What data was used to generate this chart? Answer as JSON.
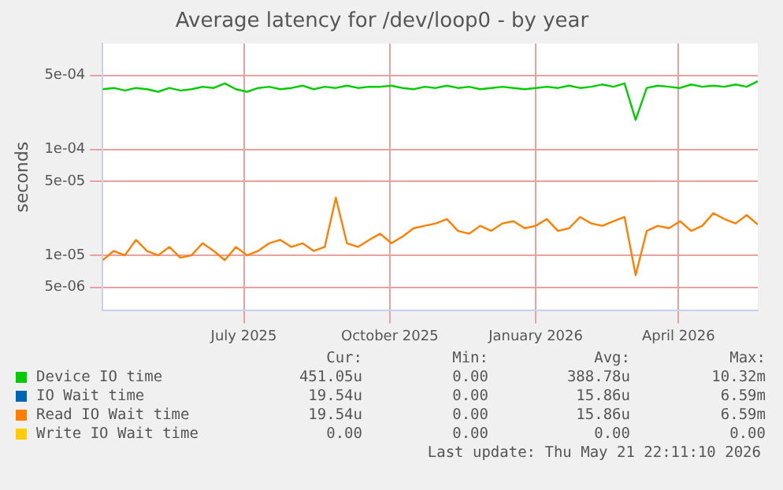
{
  "chart_data": {
    "type": "line",
    "title": "Average latency for /dev/loop0 - by year",
    "ylabel": "seconds",
    "log": "y",
    "grid": true,
    "legend": "bottom",
    "marker": "none",
    "line_style": "solid",
    "x": [
      "2025-04-03",
      "2025-04-10",
      "2025-04-17",
      "2025-04-24",
      "2025-05-01",
      "2025-05-08",
      "2025-05-15",
      "2025-05-22",
      "2025-05-29",
      "2025-06-05",
      "2025-06-12",
      "2025-06-19",
      "2025-06-26",
      "2025-07-03",
      "2025-07-10",
      "2025-07-17",
      "2025-07-24",
      "2025-07-31",
      "2025-08-07",
      "2025-08-14",
      "2025-08-21",
      "2025-08-28",
      "2025-09-04",
      "2025-09-11",
      "2025-09-18",
      "2025-09-25",
      "2025-10-02",
      "2025-10-09",
      "2025-10-16",
      "2025-10-23",
      "2025-10-30",
      "2025-11-06",
      "2025-11-13",
      "2025-11-20",
      "2025-11-27",
      "2025-12-04",
      "2025-12-11",
      "2025-12-18",
      "2025-12-25",
      "2026-01-01",
      "2026-01-08",
      "2026-01-15",
      "2026-01-22",
      "2026-01-29",
      "2026-02-05",
      "2026-02-12",
      "2026-02-19",
      "2026-02-26",
      "2026-03-05",
      "2026-03-12",
      "2026-03-19",
      "2026-03-26",
      "2026-04-02",
      "2026-04-09",
      "2026-04-16",
      "2026-04-23",
      "2026-04-30",
      "2026-05-07",
      "2026-05-14",
      "2026-05-21"
    ],
    "xlim": [
      "2025-04-03",
      "2026-05-21"
    ],
    "xticks": [
      {
        "value": "2025-07-01",
        "label": "July 2025"
      },
      {
        "value": "2025-10-01",
        "label": "October 2025"
      },
      {
        "value": "2026-01-01",
        "label": "January 2026"
      },
      {
        "value": "2026-04-01",
        "label": "April 2026"
      }
    ],
    "ylim": [
      3e-06,
      0.001
    ],
    "yticks": [
      {
        "value": 5e-06,
        "label": "5e-06"
      },
      {
        "value": 1e-05,
        "label": "1e-05"
      },
      {
        "value": 5e-05,
        "label": "5e-05"
      },
      {
        "value": 0.0001,
        "label": "1e-04"
      },
      {
        "value": 0.0005,
        "label": "5e-04"
      }
    ],
    "series": [
      {
        "name": "Device IO time",
        "color": "#00cc00",
        "values": [
          0.00037,
          0.00038,
          0.00036,
          0.00038,
          0.00037,
          0.00035,
          0.00038,
          0.00036,
          0.00037,
          0.00039,
          0.00038,
          0.00042,
          0.00037,
          0.00035,
          0.00038,
          0.00039,
          0.00037,
          0.00038,
          0.0004,
          0.00037,
          0.00039,
          0.00038,
          0.0004,
          0.00038,
          0.00039,
          0.00039,
          0.0004,
          0.00038,
          0.00037,
          0.00039,
          0.00038,
          0.0004,
          0.00038,
          0.00039,
          0.00037,
          0.00038,
          0.00039,
          0.00038,
          0.00037,
          0.00038,
          0.00039,
          0.00038,
          0.0004,
          0.00038,
          0.00039,
          0.00041,
          0.00039,
          0.00042,
          0.00019,
          0.00038,
          0.0004,
          0.00039,
          0.00038,
          0.00041,
          0.00039,
          0.0004,
          0.00039,
          0.00041,
          0.00039,
          0.00044
        ]
      },
      {
        "name": "IO Wait time",
        "color": "#0066b3",
        "values": [
          null,
          null,
          null,
          null,
          null,
          null,
          null,
          null,
          null,
          null,
          null,
          null,
          null,
          null,
          null,
          null,
          null,
          null,
          null,
          null,
          null,
          null,
          null,
          null,
          null,
          null,
          null,
          null,
          null,
          null,
          null,
          null,
          null,
          null,
          null,
          null,
          null,
          null,
          null,
          null,
          null,
          null,
          null,
          null,
          null,
          null,
          null,
          null,
          null,
          null,
          null,
          null,
          null,
          null,
          null,
          null,
          null,
          null,
          null,
          null
        ]
      },
      {
        "name": "Read IO Wait time",
        "color": "#ff8000",
        "values": [
          9e-06,
          1.1e-05,
          1e-05,
          1.4e-05,
          1.1e-05,
          1e-05,
          1.2e-05,
          9.5e-06,
          1e-05,
          1.3e-05,
          1.1e-05,
          9e-06,
          1.2e-05,
          1e-05,
          1.1e-05,
          1.3e-05,
          1.4e-05,
          1.2e-05,
          1.3e-05,
          1.1e-05,
          1.2e-05,
          3.5e-05,
          1.3e-05,
          1.2e-05,
          1.4e-05,
          1.6e-05,
          1.3e-05,
          1.5e-05,
          1.8e-05,
          1.9e-05,
          2e-05,
          2.2e-05,
          1.7e-05,
          1.6e-05,
          1.9e-05,
          1.7e-05,
          2e-05,
          2.1e-05,
          1.8e-05,
          1.9e-05,
          2.2e-05,
          1.7e-05,
          1.8e-05,
          2.3e-05,
          2e-05,
          1.9e-05,
          2.1e-05,
          2.3e-05,
          6.5e-06,
          1.7e-05,
          1.9e-05,
          1.8e-05,
          2.1e-05,
          1.7e-05,
          1.9e-05,
          2.5e-05,
          2.2e-05,
          2e-05,
          2.4e-05,
          1.95e-05
        ]
      },
      {
        "name": "Write IO Wait time",
        "color": "#ffcc00",
        "values": [
          null,
          null,
          null,
          null,
          null,
          null,
          null,
          null,
          null,
          null,
          null,
          null,
          null,
          null,
          null,
          null,
          null,
          null,
          null,
          null,
          null,
          null,
          null,
          null,
          null,
          null,
          null,
          null,
          null,
          null,
          null,
          null,
          null,
          null,
          null,
          null,
          null,
          null,
          null,
          null,
          null,
          null,
          null,
          null,
          null,
          null,
          null,
          null,
          null,
          null,
          null,
          null,
          null,
          null,
          null,
          null,
          null,
          null,
          null,
          null
        ]
      }
    ],
    "annotations": [
      "Cur:",
      "Min:",
      "Avg:",
      "Max:",
      "451.05u",
      "0.00",
      "388.78u",
      "10.32m",
      "19.54u",
      "0.00",
      "15.86u",
      "6.59m",
      "19.54u",
      "0.00",
      "15.86u",
      "6.59m",
      "0.00",
      "0.00",
      "0.00",
      "0.00",
      "Last update: Thu May 21 22:11:10 2026"
    ]
  }
}
